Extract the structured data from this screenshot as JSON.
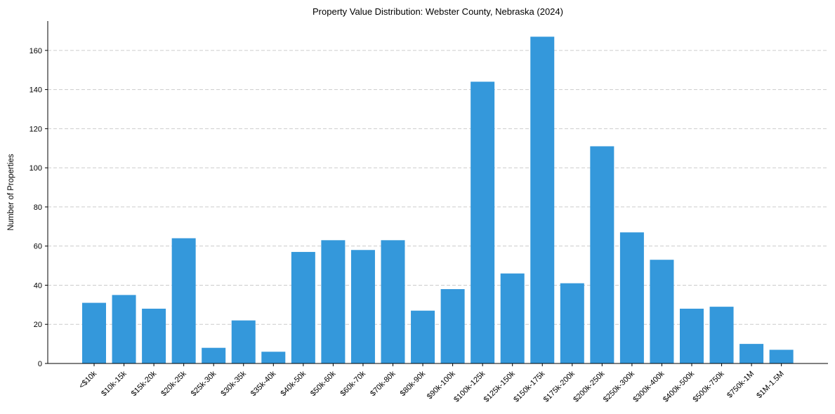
{
  "chart_data": {
    "type": "bar",
    "title": "Property Value Distribution: Webster County, Nebraska (2024)",
    "xlabel": "",
    "ylabel": "Number of Properties",
    "categories": [
      "<$10k",
      "$10k-15k",
      "$15k-20k",
      "$20k-25k",
      "$25k-30k",
      "$30k-35k",
      "$35k-40k",
      "$40k-50k",
      "$50k-60k",
      "$60k-70k",
      "$70k-80k",
      "$80k-90k",
      "$90k-100k",
      "$100k-125k",
      "$125k-150k",
      "$150k-175k",
      "$175k-200k",
      "$200k-250k",
      "$250k-300k",
      "$300k-400k",
      "$400k-500k",
      "$500k-750k",
      "$750k-1M",
      "$1M-1.5M"
    ],
    "values": [
      31,
      35,
      28,
      64,
      8,
      22,
      6,
      57,
      63,
      58,
      63,
      27,
      38,
      144,
      46,
      167,
      41,
      111,
      67,
      53,
      28,
      29,
      10,
      7
    ],
    "ylim": [
      0,
      175
    ],
    "yticks": [
      0,
      20,
      40,
      60,
      80,
      100,
      120,
      140,
      160
    ],
    "grid": "y-dashed",
    "bar_color": "#3498db",
    "grid_color": "#cccccc",
    "legend": "none"
  }
}
